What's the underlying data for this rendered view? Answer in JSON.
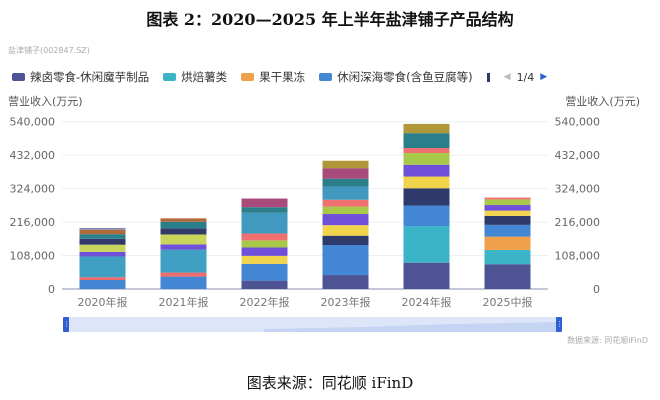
{
  "chart_data": {
    "type": "bar",
    "stacked": true,
    "title": "图表 2：2020—2025 年上半年盐津铺子产品结构",
    "subtitle": "盐津铺子(002847.SZ)",
    "ylabel_left": "营业收入(万元)",
    "ylabel_right": "营业收入(万元)",
    "ylim": [
      0,
      540000
    ],
    "yticks": [
      "0",
      "108,000",
      "216,000",
      "324,000",
      "432,000",
      "540,000"
    ],
    "ytick_values": [
      0,
      108000,
      216000,
      324000,
      432000,
      540000
    ],
    "categories": [
      "2020年报",
      "2021年报",
      "2022年报",
      "2023年报",
      "2024年报",
      "2025中报"
    ],
    "legend_page": "1/4",
    "legend_placement": "top",
    "grid": true,
    "series": [
      {
        "name": "辣卤零食-休闲魔芋制品",
        "color": "#4e5394",
        "values": [
          0,
          0,
          27000,
          45000,
          85000,
          80000
        ]
      },
      {
        "name": "烘焙薯类",
        "color": "#3cb4c8",
        "values": [
          0,
          0,
          0,
          0,
          118000,
          46000
        ]
      },
      {
        "name": "果干果冻",
        "color": "#f0a04b",
        "values": [
          0,
          0,
          0,
          0,
          0,
          43000
        ]
      },
      {
        "name": "休闲深海零食(含鱼豆腐等)",
        "color": "#4286d4",
        "values": [
          29000,
          40000,
          54000,
          97000,
          66000,
          38000
        ]
      },
      {
        "name": "",
        "color": "#ee6b6b",
        "values": [
          9000,
          13000,
          0,
          0,
          0,
          0
        ]
      },
      {
        "name": "",
        "color": "#3fa0c4",
        "values": [
          67000,
          74000,
          0,
          0,
          0,
          0
        ]
      },
      {
        "name": "",
        "color": "#2e3a6b",
        "values": [
          0,
          0,
          0,
          30000,
          56000,
          29000
        ]
      },
      {
        "name": "",
        "color": "#f2d44c",
        "values": [
          0,
          0,
          26000,
          34000,
          38000,
          17000
        ]
      },
      {
        "name": "",
        "color": "#7050d8",
        "values": [
          15000,
          17000,
          27000,
          36000,
          38000,
          18000
        ]
      },
      {
        "name": "",
        "color": "#c8d45a",
        "values": [
          23000,
          32000,
          0,
          0,
          0,
          0
        ]
      },
      {
        "name": "",
        "color": "#a8c84a",
        "values": [
          0,
          0,
          23000,
          24000,
          38000,
          18000
        ]
      },
      {
        "name": "",
        "color": "#f07070",
        "values": [
          0,
          0,
          22000,
          22000,
          16000,
          6000
        ]
      },
      {
        "name": "",
        "color": "#4299c0",
        "values": [
          0,
          0,
          67000,
          43000,
          0,
          0
        ]
      },
      {
        "name": "",
        "color": "#33396a",
        "values": [
          19000,
          19000,
          0,
          0,
          0,
          0
        ]
      },
      {
        "name": "",
        "color": "#2a7f8a",
        "values": [
          15000,
          22000,
          18000,
          25000,
          48000,
          0
        ]
      },
      {
        "name": "",
        "color": "#a84a7a",
        "values": [
          0,
          0,
          28000,
          34000,
          0,
          0
        ]
      },
      {
        "name": "",
        "color": "#b06a3a",
        "values": [
          14000,
          11000,
          0,
          0,
          0,
          0
        ]
      },
      {
        "name": "",
        "color": "#8a8ab0",
        "values": [
          6000,
          0,
          0,
          0,
          0,
          0
        ]
      },
      {
        "name": "",
        "color": "#b0983a",
        "values": [
          0,
          0,
          0,
          24000,
          30000,
          0
        ]
      }
    ]
  },
  "source_note": "数据来源: 同花顺iFinD",
  "caption": "图表来源：同花顺 iFinD"
}
